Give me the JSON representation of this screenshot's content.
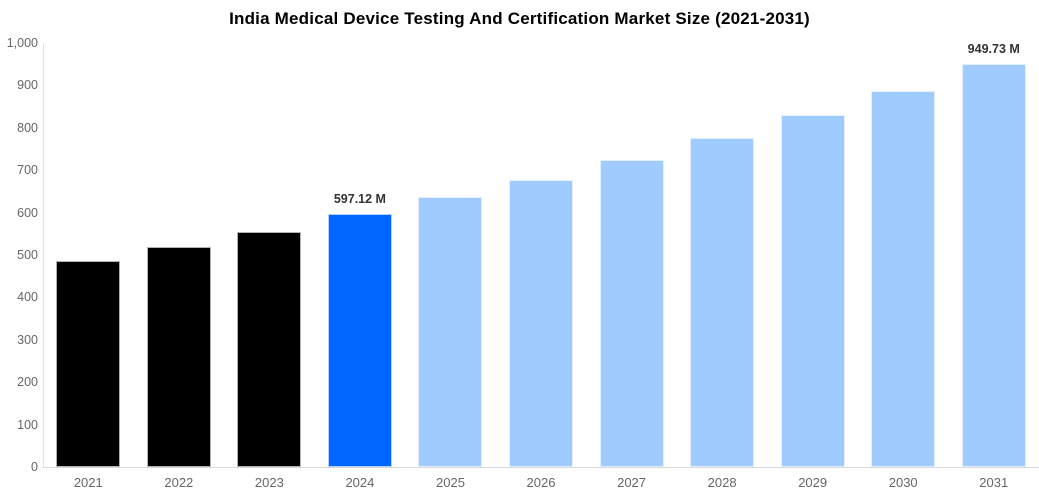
{
  "chart_data": {
    "type": "bar",
    "title": "India Medical Device Testing And Certification Market Size (2021-2031)",
    "unit": "M",
    "categories": [
      "2021",
      "2022",
      "2023",
      "2024",
      "2025",
      "2026",
      "2027",
      "2028",
      "2029",
      "2030",
      "2031"
    ],
    "values": [
      486,
      519,
      555,
      597.12,
      636,
      678,
      723,
      777,
      831,
      888,
      949.73
    ],
    "bar_colors": [
      "#000000",
      "#000000",
      "#000000",
      "#0066FF",
      "#9FCBFF",
      "#9FCBFF",
      "#9FCBFF",
      "#9FCBFF",
      "#9FCBFF",
      "#9FCBFF",
      "#9FCBFF"
    ],
    "annotations": [
      {
        "index": 3,
        "text": "597.12 M"
      },
      {
        "index": 10,
        "text": "949.73 M"
      }
    ],
    "ylim": [
      0,
      1000
    ],
    "y_ticks": [
      {
        "value": 0,
        "label": "0"
      },
      {
        "value": 100,
        "label": "100"
      },
      {
        "value": 200,
        "label": "200"
      },
      {
        "value": 300,
        "label": "300"
      },
      {
        "value": 400,
        "label": "400"
      },
      {
        "value": 500,
        "label": "500"
      },
      {
        "value": 600,
        "label": "600"
      },
      {
        "value": 700,
        "label": "700"
      },
      {
        "value": 800,
        "label": "800"
      },
      {
        "value": 900,
        "label": "900"
      },
      {
        "value": 1000,
        "label": "1,000"
      }
    ],
    "xlabel": "",
    "ylabel": "",
    "grid": false,
    "legend": false,
    "colors_legend": {
      "historical": "#000000",
      "current_year": "#0066FF",
      "forecast": "#9FCBFF"
    }
  }
}
